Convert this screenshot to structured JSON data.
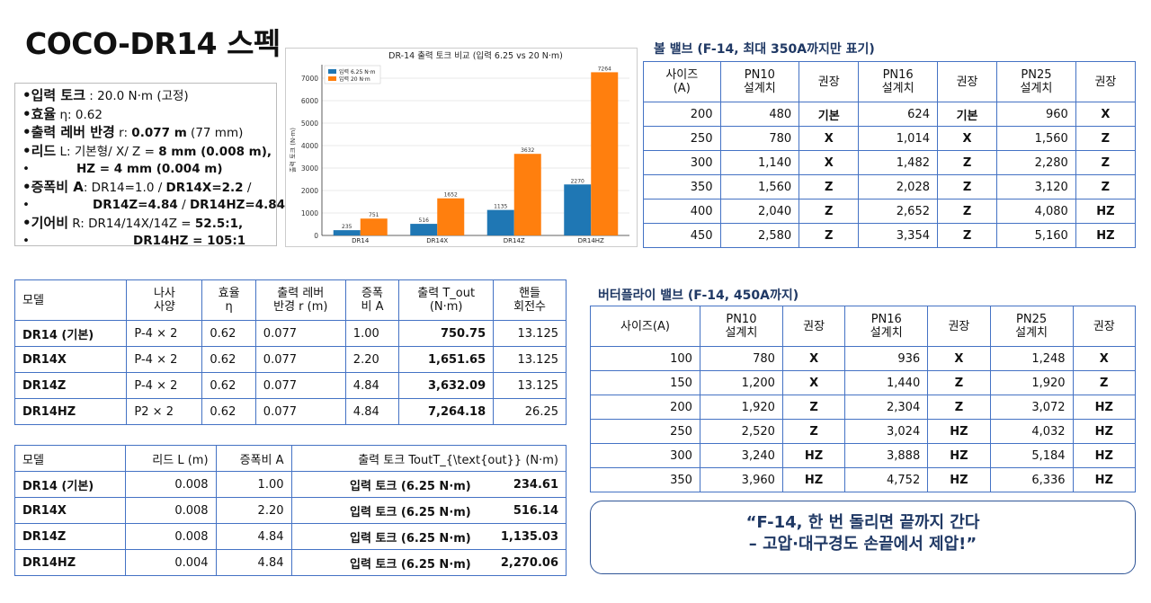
{
  "title": "COCO-DR14 스펙",
  "spec": {
    "lines": [
      {
        "label": "•입력 토크",
        "text": " : 20.0 N·m (고정)"
      },
      {
        "label": "•효율",
        "text": " η: 0.62"
      },
      {
        "label": "•출력 레버 반경",
        "text": " r: ",
        "bold": "0.077 m",
        "tail": " (77 mm)"
      },
      {
        "label": "•리드",
        "text": " L: 기본형/ X/ Z = ",
        "bold": "8 mm (0.008 m),"
      },
      {
        "indent": "•",
        "bold": "HZ = 4 mm (0.004 m)"
      },
      {
        "label": "•증폭비 A",
        "text": ": DR14=1.0 / ",
        "bold": "DR14X=2.2",
        "tail": " /"
      },
      {
        "indent": "•",
        "bold": "DR14Z=4.84",
        "text": " / ",
        "bold2": "DR14HZ=4.84"
      },
      {
        "label": "•기어비",
        "text": " R: DR14/14X/14Z = ",
        "bold": "52.5:1,"
      },
      {
        "indent": "•",
        "bold": "DR14HZ = 105:1"
      }
    ]
  },
  "chart_data": {
    "type": "bar",
    "title": "DR-14 출력 토크 비교 (입력 6.25 vs 20 N·m)",
    "ylabel": "출력 토크 (N·m)",
    "xlabel": "",
    "categories": [
      "DR14",
      "DR14X",
      "DR14Z",
      "DR14HZ"
    ],
    "series": [
      {
        "name": "입력 6.25 N·m",
        "values": [
          235,
          516,
          1135,
          2270
        ],
        "color": "#1f77b4"
      },
      {
        "name": "입력 20 N·m",
        "values": [
          751,
          1652,
          3632,
          7264
        ],
        "color": "#ff7f0e"
      }
    ],
    "ylim": [
      0,
      7600
    ],
    "yticks": [
      0,
      1000,
      2000,
      3000,
      4000,
      5000,
      6000,
      7000
    ],
    "legend": "top-left"
  },
  "ball": {
    "title": "볼 밸브 (F-14, 최대 350A까지만 표기)",
    "headers": [
      "사이즈\n(A)",
      "PN10\n설계치",
      "권장",
      "PN16\n설계치",
      "권장",
      "PN25\n설계치",
      "권장"
    ],
    "rows": [
      [
        "200",
        "480",
        "기본",
        "624",
        "기본",
        "960",
        "X"
      ],
      [
        "250",
        "780",
        "X",
        "1,014",
        "X",
        "1,560",
        "Z"
      ],
      [
        "300",
        "1,140",
        "X",
        "1,482",
        "Z",
        "2,280",
        "Z"
      ],
      [
        "350",
        "1,560",
        "Z",
        "2,028",
        "Z",
        "3,120",
        "Z"
      ],
      [
        "400",
        "2,040",
        "Z",
        "2,652",
        "Z",
        "4,080",
        "HZ"
      ],
      [
        "450",
        "2,580",
        "Z",
        "3,354",
        "Z",
        "5,160",
        "HZ"
      ]
    ]
  },
  "bfly": {
    "title": "버터플라이 밸브 (F-14, 450A까지)",
    "headers": [
      "사이즈(A)",
      "PN10\n설계치",
      "권장",
      "PN16\n설계치",
      "권장",
      "PN25\n설계치",
      "권장"
    ],
    "rows": [
      [
        "100",
        "780",
        "X",
        "936",
        "X",
        "1,248",
        "X"
      ],
      [
        "150",
        "1,200",
        "X",
        "1,440",
        "Z",
        "1,920",
        "Z"
      ],
      [
        "200",
        "1,920",
        "Z",
        "2,304",
        "Z",
        "3,072",
        "HZ"
      ],
      [
        "250",
        "2,520",
        "Z",
        "3,024",
        "HZ",
        "4,032",
        "HZ"
      ],
      [
        "300",
        "3,240",
        "HZ",
        "3,888",
        "HZ",
        "5,184",
        "HZ"
      ],
      [
        "350",
        "3,960",
        "HZ",
        "4,752",
        "HZ",
        "6,336",
        "HZ"
      ]
    ]
  },
  "t1": {
    "headers": [
      "모델",
      "나사\n사양",
      "효율\nη",
      "출력 레버\n반경 r (m)",
      "증폭\n비 A",
      "출력 T_out\n(N·m)",
      "핸들\n회전수"
    ],
    "rows": [
      [
        "DR14 (기본)",
        "P-4 × 2",
        "0.62",
        "0.077",
        "1.00",
        "750.75",
        "13.125"
      ],
      [
        "DR14X",
        "P-4 × 2",
        "0.62",
        "0.077",
        "2.20",
        "1,651.65",
        "13.125"
      ],
      [
        "DR14Z",
        "P-4 × 2",
        "0.62",
        "0.077",
        "4.84",
        "3,632.09",
        "13.125"
      ],
      [
        "DR14HZ",
        "P2 × 2",
        "0.62",
        "0.077",
        "4.84",
        "7,264.18",
        "26.25"
      ]
    ]
  },
  "t2": {
    "headers": [
      "모델",
      "리드 L (m)",
      "증폭비 A",
      "출력 토크 ToutT_{\\text{out}} (N·m)"
    ],
    "rows": [
      [
        "DR14 (기본)",
        "0.008",
        "1.00",
        "입력 토크 (6.25 N·m)",
        "234.61"
      ],
      [
        "DR14X",
        "0.008",
        "2.20",
        "입력 토크 (6.25 N·m)",
        "516.14"
      ],
      [
        "DR14Z",
        "0.008",
        "4.84",
        "입력 토크 (6.25 N·m)",
        "1,135.03"
      ],
      [
        "DR14HZ",
        "0.004",
        "4.84",
        "입력 토크 (6.25 N·m)",
        "2,270.06"
      ]
    ]
  },
  "quote": {
    "line1": "“F-14, 한 번 돌리면 끝까지 간다",
    "line2": "– 고압·대구경도 손끝에서 제압!”"
  }
}
